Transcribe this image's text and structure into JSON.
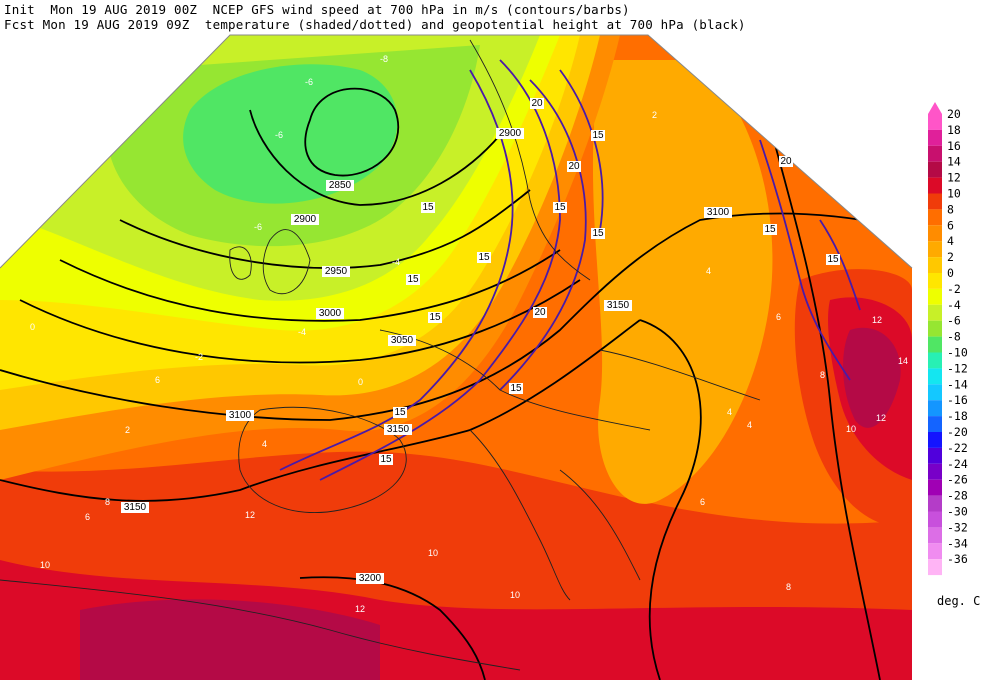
{
  "header": {
    "line1": "Init  Mon 19 AUG 2019 00Z  NCEP GFS wind speed at 700 hPa in m/s (contours/barbs)",
    "line2": "Fcst Mon 19 AUG 2019 09Z  temperature (shaded/dotted) and geopotential height at 700 hPa (black)"
  },
  "legend": {
    "units": "deg. C",
    "levels": [
      20,
      18,
      16,
      14,
      12,
      10,
      8,
      6,
      4,
      2,
      0,
      -2,
      -4,
      -6,
      -8,
      -10,
      -12,
      -14,
      -16,
      -18,
      -20,
      -22,
      -24,
      -26,
      -28,
      -30,
      -32,
      -34,
      -36
    ],
    "colors": [
      "#ff55c8",
      "#e0209a",
      "#c8106e",
      "#b40a46",
      "#dc0a28",
      "#f03c0a",
      "#ff6e00",
      "#ff8c00",
      "#ffaa00",
      "#ffc800",
      "#ffe600",
      "#eeff00",
      "#c8f028",
      "#96e632",
      "#50e664",
      "#28f0b4",
      "#14e6f0",
      "#14c8ff",
      "#1496ff",
      "#1464ff",
      "#1414ff",
      "#5000dc",
      "#7800c8",
      "#a000b4",
      "#b43cc8",
      "#c850dc",
      "#dc6ee6",
      "#f08cf0",
      "#ffb4f5"
    ]
  },
  "height_labels": [
    "2850",
    "2900",
    "2900",
    "2950",
    "3000",
    "3050",
    "3100",
    "3100",
    "3150",
    "3150",
    "3150",
    "3200"
  ],
  "wind_labels": [
    "15",
    "15",
    "15",
    "20",
    "20",
    "15",
    "15",
    "15",
    "20",
    "15",
    "15",
    "15",
    "15",
    "15",
    "20",
    "15"
  ],
  "temp_labels": [
    "-6",
    "-8",
    "-6",
    "-6",
    "-4",
    "-4",
    "-2",
    "0",
    "0",
    "2",
    "4",
    "6",
    "6",
    "8",
    "10",
    "10",
    "12",
    "12",
    "2",
    "4",
    "4",
    "6",
    "8",
    "10",
    "12",
    "12",
    "14",
    "10",
    "8",
    "6",
    "4"
  ]
}
